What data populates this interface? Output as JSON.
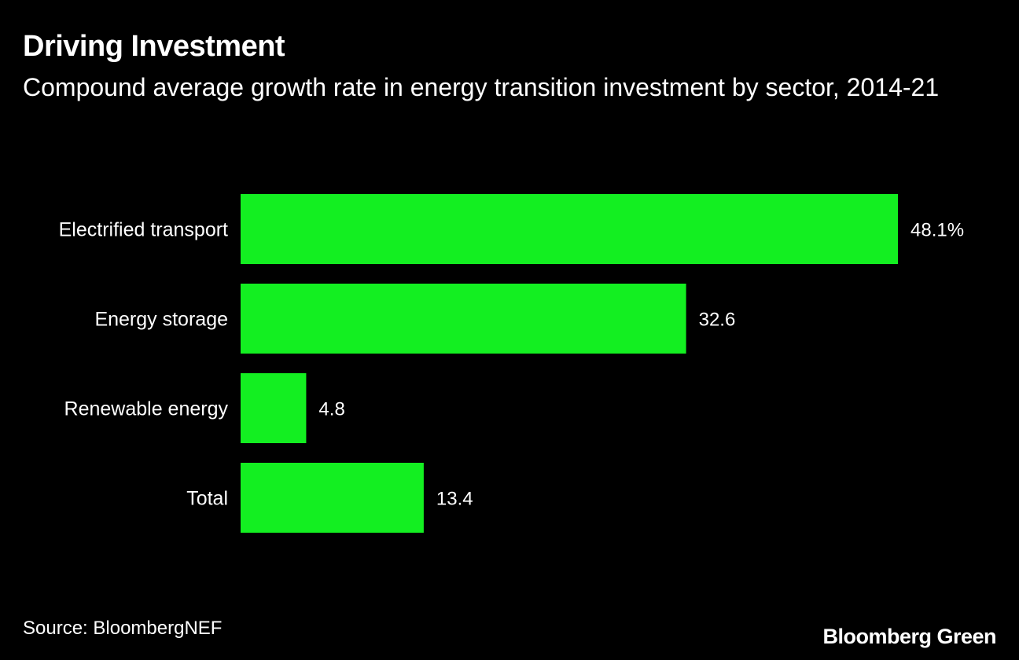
{
  "header": {
    "title": "Driving Investment",
    "subtitle": "Compound average growth rate in energy transition investment by sector, 2014-21"
  },
  "footer": {
    "source": "Source: BloombergNEF",
    "brand": "Bloomberg Green"
  },
  "colors": {
    "background": "#000000",
    "bar": "#13EF21",
    "text": "#ffffff"
  },
  "chart_data": {
    "type": "bar",
    "orientation": "horizontal",
    "title": "Driving Investment",
    "subtitle": "Compound average growth rate in energy transition investment by sector, 2014-21",
    "categories": [
      "Electrified transport",
      "Energy storage",
      "Renewable energy",
      "Total"
    ],
    "values": [
      48.1,
      32.6,
      4.8,
      13.4
    ],
    "value_labels": [
      "48.1%",
      "32.6",
      "4.8",
      "13.4"
    ],
    "unit": "%",
    "xlabel": "",
    "ylabel": "",
    "xlim": [
      0,
      48.1
    ],
    "grid": false,
    "legend": "none",
    "source": "Source: BloombergNEF"
  }
}
